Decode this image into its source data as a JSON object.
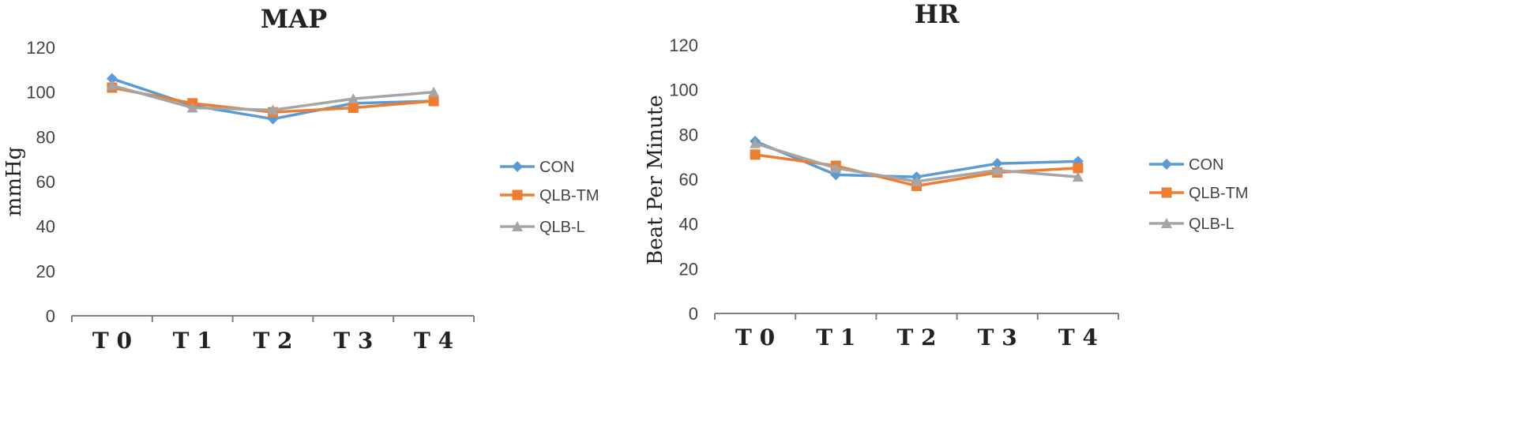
{
  "chart_data": [
    {
      "type": "line",
      "title": "MAP",
      "xlabel": "",
      "ylabel": "mmHg",
      "categories": [
        "T0",
        "T1",
        "T2",
        "T3",
        "T4"
      ],
      "category_labels": [
        "T 0",
        "T 1",
        "T 2",
        "T 3",
        "T 4"
      ],
      "ylim": [
        0,
        120
      ],
      "yticks": [
        0,
        20,
        40,
        60,
        80,
        100,
        120
      ],
      "grid": false,
      "legend_position": "right",
      "series": [
        {
          "name": "CON",
          "values": [
            106,
            94,
            88,
            95,
            96
          ],
          "color": "#5b9bd5",
          "marker": "diamond"
        },
        {
          "name": "QLB-TM",
          "values": [
            102,
            95,
            91,
            93,
            96
          ],
          "color": "#ed7d31",
          "marker": "square"
        },
        {
          "name": "QLB-L",
          "values": [
            103,
            93,
            92,
            97,
            100
          ],
          "color": "#a5a5a5",
          "marker": "triangle"
        }
      ]
    },
    {
      "type": "line",
      "title": "HR",
      "xlabel": "",
      "ylabel": "Beat Per Minute",
      "categories": [
        "T0",
        "T1",
        "T2",
        "T3",
        "T4"
      ],
      "category_labels": [
        "T 0",
        "T 1",
        "T 2",
        "T 3",
        "T 4"
      ],
      "ylim": [
        0,
        120
      ],
      "yticks": [
        0,
        20,
        40,
        60,
        80,
        100,
        120
      ],
      "grid": false,
      "legend_position": "right",
      "series": [
        {
          "name": "CON",
          "values": [
            77,
            62,
            61,
            67,
            68
          ],
          "color": "#5b9bd5",
          "marker": "diamond"
        },
        {
          "name": "QLB-TM",
          "values": [
            71,
            66,
            57,
            63,
            65
          ],
          "color": "#ed7d31",
          "marker": "square"
        },
        {
          "name": "QLB-L",
          "values": [
            76,
            65,
            59,
            64,
            61
          ],
          "color": "#a5a5a5",
          "marker": "triangle"
        }
      ]
    }
  ]
}
